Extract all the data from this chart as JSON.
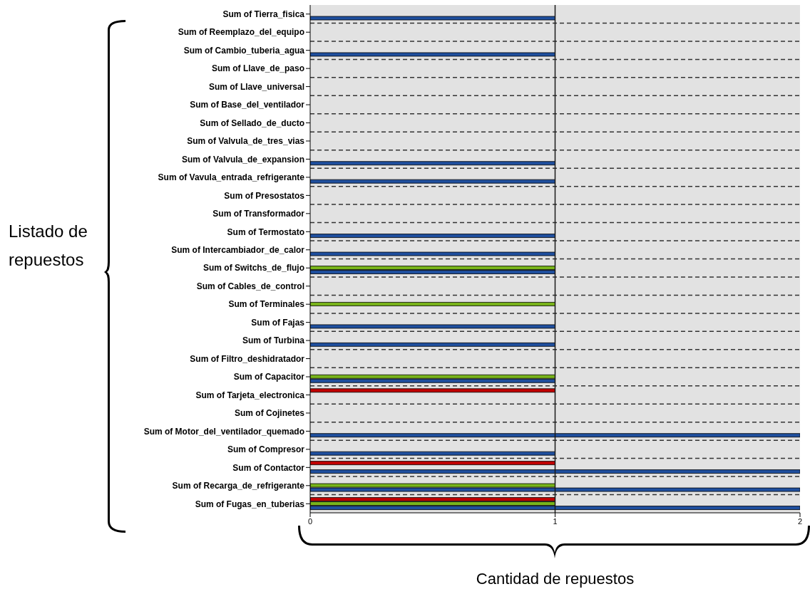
{
  "chart_data": {
    "type": "bar",
    "orientation": "horizontal",
    "xlabel": "Cantidad de repuestos",
    "ylabel": "Listado de repuestos",
    "categories": [
      "Sum of Tierra_fisica",
      "Sum of Reemplazo_del_equipo",
      "Sum of Cambio_tuberia_agua",
      "Sum of Llave_de_paso",
      "Sum of Llave_universal",
      "Sum of Base_del_ventilador",
      "Sum of Sellado_de_ducto",
      "Sum of Valvula_de_tres_vias",
      "Sum of Valvula_de_expansion",
      "Sum of Vavula_entrada_refrigerante",
      "Sum of Presostatos",
      "Sum of Transformador",
      "Sum of Termostato",
      "Sum of Intercambiador_de_calor",
      "Sum of Switchs_de_flujo",
      "Sum of Cables_de_control",
      "Sum of Terminales",
      "Sum of Fajas",
      "Sum of Turbina",
      "Sum of Filtro_deshidratador",
      "Sum of Capacitor",
      "Sum of Tarjeta_electronica",
      "Sum of Cojinetes",
      "Sum of Motor_del_ventilador_quemado",
      "Sum of Compresor",
      "Sum of Contactor",
      "Sum of Recarga_de_refrigerante",
      "Sum of Fugas_en_tuberias"
    ],
    "series": [
      {
        "color": "#c00000",
        "values": [
          null,
          null,
          null,
          null,
          null,
          null,
          null,
          null,
          null,
          null,
          null,
          null,
          null,
          null,
          null,
          null,
          null,
          null,
          null,
          null,
          null,
          1,
          null,
          null,
          null,
          1,
          null,
          1
        ]
      },
      {
        "color": "#78b41a",
        "values": [
          null,
          null,
          null,
          null,
          null,
          null,
          null,
          null,
          null,
          null,
          null,
          null,
          null,
          null,
          1,
          null,
          1,
          null,
          null,
          null,
          1,
          null,
          null,
          null,
          null,
          null,
          1,
          1
        ]
      },
      {
        "color": "#1f4f9e",
        "values": [
          1,
          null,
          1,
          null,
          null,
          null,
          null,
          null,
          1,
          1,
          null,
          null,
          1,
          1,
          1,
          null,
          null,
          1,
          1,
          null,
          1,
          null,
          null,
          2,
          1,
          2,
          2,
          2
        ]
      }
    ],
    "xlim": [
      0,
      2
    ],
    "xticks": [
      0,
      1,
      2
    ],
    "grid": "y",
    "ref_lines": [
      {
        "axis": "x",
        "value": 1,
        "color": "#1a1a1a",
        "line_style": "solid"
      }
    ]
  }
}
